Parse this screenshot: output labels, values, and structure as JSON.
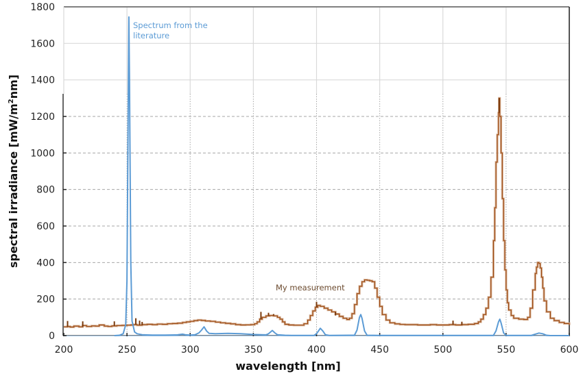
{
  "chart_data": {
    "type": "line",
    "title": "",
    "xlabel": "wavelength [nm]",
    "ylabel": "spectral irradiance  [mW/m²nm]",
    "ylabel_parts": {
      "prefix": "spectral irradiance  [mW/m",
      "sup": "2",
      "suffix": "nm]"
    },
    "xlim": [
      200,
      600
    ],
    "ylim": [
      0,
      1800
    ],
    "x_ticks": [
      200,
      250,
      300,
      350,
      400,
      450,
      500,
      550,
      600
    ],
    "y_ticks": [
      0,
      200,
      400,
      600,
      800,
      1000,
      1200,
      1400,
      1600,
      1800
    ],
    "grid": true,
    "legend": "none (inline annotations)",
    "annotations": [
      {
        "text_lines": [
          "Spectrum from the",
          "literature"
        ],
        "x": 252,
        "y": 1710,
        "color": "#5b9bd5",
        "series": "Spectrum from the literature"
      },
      {
        "text_lines": [
          "My measurement"
        ],
        "x": 367,
        "y": 250,
        "color": "#6b4a2e",
        "series": "My measurement"
      }
    ],
    "series": [
      {
        "name": "Spectrum from the literature",
        "color": "#5b9bd5",
        "style": "smooth line",
        "points": [
          [
            240,
            0
          ],
          [
            244,
            2
          ],
          [
            247,
            10
          ],
          [
            249,
            60
          ],
          [
            250,
            300
          ],
          [
            251,
            1300
          ],
          [
            251.5,
            1745
          ],
          [
            252,
            1400
          ],
          [
            253,
            400
          ],
          [
            254,
            80
          ],
          [
            256,
            20
          ],
          [
            258,
            10
          ],
          [
            262,
            5
          ],
          [
            270,
            3
          ],
          [
            280,
            3
          ],
          [
            290,
            4
          ],
          [
            294,
            8
          ],
          [
            296,
            5
          ],
          [
            300,
            3
          ],
          [
            304,
            5
          ],
          [
            307,
            15
          ],
          [
            309,
            30
          ],
          [
            311,
            48
          ],
          [
            313,
            25
          ],
          [
            315,
            12
          ],
          [
            320,
            10
          ],
          [
            330,
            12
          ],
          [
            340,
            10
          ],
          [
            350,
            6
          ],
          [
            360,
            4
          ],
          [
            362,
            10
          ],
          [
            364,
            22
          ],
          [
            365,
            28
          ],
          [
            367,
            15
          ],
          [
            369,
            5
          ],
          [
            375,
            2
          ],
          [
            380,
            1
          ],
          [
            398,
            1
          ],
          [
            400,
            10
          ],
          [
            402,
            30
          ],
          [
            403,
            40
          ],
          [
            405,
            25
          ],
          [
            407,
            5
          ],
          [
            410,
            1
          ],
          [
            430,
            2
          ],
          [
            432,
            30
          ],
          [
            434,
            100
          ],
          [
            435,
            115
          ],
          [
            436,
            95
          ],
          [
            438,
            25
          ],
          [
            440,
            2
          ],
          [
            450,
            1
          ],
          [
            540,
            1
          ],
          [
            542,
            25
          ],
          [
            544,
            75
          ],
          [
            545,
            90
          ],
          [
            546,
            70
          ],
          [
            548,
            15
          ],
          [
            550,
            1
          ],
          [
            570,
            1
          ],
          [
            573,
            8
          ],
          [
            576,
            14
          ],
          [
            579,
            10
          ],
          [
            582,
            2
          ],
          [
            585,
            0
          ],
          [
            600,
            0
          ]
        ]
      },
      {
        "name": "My measurement",
        "color": "#9c4a12",
        "style": "stepped noisy line",
        "points": [
          [
            200,
            48
          ],
          [
            203,
            50
          ],
          [
            205,
            47
          ],
          [
            208,
            52
          ],
          [
            212,
            48
          ],
          [
            215,
            55
          ],
          [
            218,
            50
          ],
          [
            222,
            53
          ],
          [
            225,
            52
          ],
          [
            228,
            58
          ],
          [
            232,
            52
          ],
          [
            235,
            50
          ],
          [
            238,
            53
          ],
          [
            242,
            55
          ],
          [
            246,
            56
          ],
          [
            250,
            57
          ],
          [
            253,
            58
          ],
          [
            255,
            60
          ],
          [
            258,
            57
          ],
          [
            262,
            60
          ],
          [
            266,
            62
          ],
          [
            270,
            60
          ],
          [
            274,
            63
          ],
          [
            278,
            62
          ],
          [
            282,
            65
          ],
          [
            286,
            66
          ],
          [
            290,
            68
          ],
          [
            294,
            72
          ],
          [
            297,
            75
          ],
          [
            300,
            78
          ],
          [
            303,
            82
          ],
          [
            306,
            85
          ],
          [
            309,
            83
          ],
          [
            312,
            80
          ],
          [
            316,
            78
          ],
          [
            320,
            74
          ],
          [
            324,
            70
          ],
          [
            328,
            67
          ],
          [
            332,
            64
          ],
          [
            336,
            60
          ],
          [
            340,
            58
          ],
          [
            344,
            59
          ],
          [
            348,
            60
          ],
          [
            351,
            65
          ],
          [
            353,
            75
          ],
          [
            355,
            90
          ],
          [
            357,
            100
          ],
          [
            360,
            108
          ],
          [
            363,
            110
          ],
          [
            366,
            108
          ],
          [
            369,
            100
          ],
          [
            371,
            90
          ],
          [
            373,
            75
          ],
          [
            375,
            62
          ],
          [
            378,
            58
          ],
          [
            382,
            57
          ],
          [
            386,
            57
          ],
          [
            390,
            65
          ],
          [
            393,
            85
          ],
          [
            395,
            110
          ],
          [
            397,
            135
          ],
          [
            399,
            155
          ],
          [
            401,
            165
          ],
          [
            403,
            160
          ],
          [
            406,
            150
          ],
          [
            409,
            140
          ],
          [
            412,
            130
          ],
          [
            415,
            118
          ],
          [
            418,
            105
          ],
          [
            421,
            95
          ],
          [
            424,
            88
          ],
          [
            426,
            95
          ],
          [
            428,
            120
          ],
          [
            430,
            170
          ],
          [
            432,
            230
          ],
          [
            434,
            270
          ],
          [
            436,
            295
          ],
          [
            438,
            305
          ],
          [
            440,
            303
          ],
          [
            442,
            300
          ],
          [
            444,
            295
          ],
          [
            446,
            260
          ],
          [
            448,
            210
          ],
          [
            450,
            160
          ],
          [
            452,
            115
          ],
          [
            455,
            85
          ],
          [
            458,
            70
          ],
          [
            462,
            64
          ],
          [
            466,
            61
          ],
          [
            470,
            60
          ],
          [
            475,
            60
          ],
          [
            480,
            58
          ],
          [
            485,
            58
          ],
          [
            490,
            60
          ],
          [
            495,
            58
          ],
          [
            500,
            58
          ],
          [
            505,
            60
          ],
          [
            510,
            58
          ],
          [
            515,
            60
          ],
          [
            520,
            62
          ],
          [
            525,
            66
          ],
          [
            528,
            75
          ],
          [
            530,
            90
          ],
          [
            532,
            115
          ],
          [
            534,
            150
          ],
          [
            536,
            210
          ],
          [
            538,
            320
          ],
          [
            540,
            520
          ],
          [
            541,
            700
          ],
          [
            542,
            950
          ],
          [
            543,
            1100
          ],
          [
            544,
            1220
          ],
          [
            544.5,
            1300
          ],
          [
            545,
            1200
          ],
          [
            546,
            1000
          ],
          [
            547,
            750
          ],
          [
            548,
            520
          ],
          [
            549,
            360
          ],
          [
            550,
            250
          ],
          [
            551,
            180
          ],
          [
            552,
            140
          ],
          [
            554,
            110
          ],
          [
            556,
            95
          ],
          [
            560,
            90
          ],
          [
            564,
            88
          ],
          [
            567,
            100
          ],
          [
            569,
            150
          ],
          [
            571,
            250
          ],
          [
            573,
            340
          ],
          [
            574,
            375
          ],
          [
            575,
            400
          ],
          [
            576,
            395
          ],
          [
            577,
            370
          ],
          [
            578,
            320
          ],
          [
            579,
            260
          ],
          [
            580,
            190
          ],
          [
            582,
            130
          ],
          [
            585,
            95
          ],
          [
            588,
            82
          ],
          [
            592,
            72
          ],
          [
            596,
            66
          ],
          [
            600,
            58
          ]
        ],
        "spikes": [
          [
            203,
            80
          ],
          [
            215,
            78
          ],
          [
            240,
            78
          ],
          [
            257,
            95
          ],
          [
            260,
            82
          ],
          [
            262,
            75
          ],
          [
            330,
            68
          ],
          [
            356,
            130
          ],
          [
            362,
            125
          ],
          [
            366,
            118
          ],
          [
            400,
            185
          ],
          [
            415,
            110
          ],
          [
            508,
            82
          ],
          [
            515,
            76
          ],
          [
            544.5,
            1300
          ]
        ]
      }
    ]
  },
  "axes": {
    "x_tick_labels": [
      "200",
      "250",
      "300",
      "350",
      "400",
      "450",
      "500",
      "550",
      "600"
    ],
    "y_tick_labels": [
      "0",
      "200",
      "400",
      "600",
      "800",
      "1000",
      "1200",
      "1400",
      "1600",
      "1800"
    ],
    "x_title": "wavelength [nm]",
    "y_title_prefix": "spectral irradiance  [mW/m",
    "y_title_sup": "2",
    "y_title_suffix": "nm]"
  },
  "annotations": {
    "literature_line1": "Spectrum from the",
    "literature_line2": "literature",
    "measurement": "My measurement"
  },
  "colors": {
    "literature": "#5b9bd5",
    "measurement": "#9c4a12",
    "measurement_glow": "#d8b49a",
    "grid_solid": "#d9d9d9",
    "grid_dotted": "#a6a6a6",
    "axis": "#595959"
  }
}
